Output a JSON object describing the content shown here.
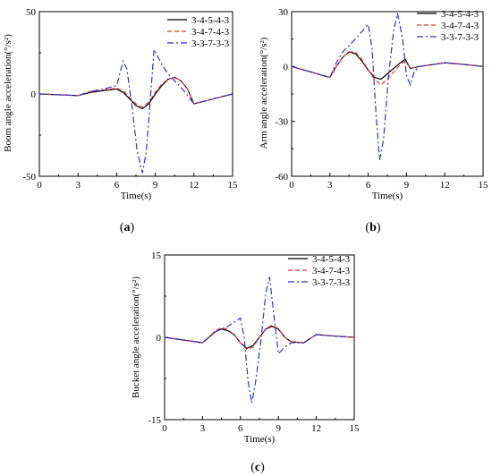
{
  "chart_data": [
    {
      "type": "line",
      "caption_letter": "a",
      "ylabel": "Boom  angle acceleration(°/s²)",
      "xlabel": "Time(s)",
      "xlim": [
        0,
        15
      ],
      "ylim": [
        -50,
        50
      ],
      "xticks": [
        0,
        3,
        6,
        9,
        12,
        15
      ],
      "yticks": [
        -50,
        0,
        50
      ],
      "grid": false,
      "legend_position": "top-right",
      "series": [
        {
          "name": "3-4-5-4-3",
          "color": "#000000",
          "dash": "solid",
          "points": [
            [
              0,
              0
            ],
            [
              3,
              -1
            ],
            [
              4,
              1
            ],
            [
              5,
              2
            ],
            [
              6,
              3
            ],
            [
              6.5,
              1
            ],
            [
              7,
              -3
            ],
            [
              7.5,
              -7
            ],
            [
              8,
              -9
            ],
            [
              8.5,
              -6
            ],
            [
              9,
              0
            ],
            [
              9.5,
              5
            ],
            [
              10,
              9
            ],
            [
              10.5,
              10
            ],
            [
              11,
              8
            ],
            [
              11.5,
              3
            ],
            [
              12,
              -6
            ],
            [
              13,
              -4
            ],
            [
              14,
              -2
            ],
            [
              15,
              0
            ]
          ]
        },
        {
          "name": "3-4-7-4-3",
          "color": "#e53935",
          "dash": "dashed",
          "points": [
            [
              0,
              0
            ],
            [
              3,
              -1
            ],
            [
              4,
              1.5
            ],
            [
              5,
              2.5
            ],
            [
              6,
              3.5
            ],
            [
              6.5,
              2
            ],
            [
              7,
              -2
            ],
            [
              7.5,
              -6
            ],
            [
              8,
              -8
            ],
            [
              8.5,
              -5
            ],
            [
              9,
              1
            ],
            [
              9.5,
              6
            ],
            [
              10,
              9
            ],
            [
              10.5,
              10
            ],
            [
              11,
              8
            ],
            [
              11.5,
              3
            ],
            [
              12,
              -6
            ],
            [
              13,
              -4
            ],
            [
              14,
              -2
            ],
            [
              15,
              0
            ]
          ]
        },
        {
          "name": "3-3-7-3-3",
          "color": "#2a35d6",
          "dash": "dashdot",
          "points": [
            [
              0,
              0
            ],
            [
              3,
              -1
            ],
            [
              4,
              1.5
            ],
            [
              5,
              3
            ],
            [
              6,
              5
            ],
            [
              6.5,
              20
            ],
            [
              6.8,
              15
            ],
            [
              7.2,
              -8
            ],
            [
              7.6,
              -35
            ],
            [
              8,
              -48
            ],
            [
              8.3,
              -35
            ],
            [
              8.6,
              -5
            ],
            [
              8.9,
              27
            ],
            [
              9.5,
              18
            ],
            [
              10,
              12
            ],
            [
              10.5,
              8
            ],
            [
              11,
              4
            ],
            [
              12,
              -6
            ],
            [
              13,
              -4
            ],
            [
              14,
              -2
            ],
            [
              15,
              0
            ]
          ]
        }
      ]
    },
    {
      "type": "line",
      "caption_letter": "b",
      "ylabel": "Arm  angle acceleration(°/s²)",
      "xlabel": "Time(s)",
      "xlim": [
        0,
        15
      ],
      "ylim": [
        -60,
        30
      ],
      "xticks": [
        0,
        3,
        6,
        9,
        12,
        15
      ],
      "yticks": [
        -60,
        -30,
        0,
        30
      ],
      "grid": false,
      "legend_position": "top-right",
      "series": [
        {
          "name": "3-4-5-4-3",
          "color": "#000000",
          "dash": "solid",
          "points": [
            [
              0,
              0
            ],
            [
              3,
              -6
            ],
            [
              3.5,
              0
            ],
            [
              4,
              5
            ],
            [
              4.5,
              8
            ],
            [
              5,
              7
            ],
            [
              5.5,
              3
            ],
            [
              6,
              -2
            ],
            [
              6.5,
              -6
            ],
            [
              7,
              -7
            ],
            [
              7.5,
              -4
            ],
            [
              8,
              -1
            ],
            [
              8.5,
              2
            ],
            [
              8.9,
              4
            ],
            [
              9.3,
              -1
            ],
            [
              10,
              0
            ],
            [
              12,
              2
            ],
            [
              13,
              1.5
            ],
            [
              14,
              0.8
            ],
            [
              15,
              0
            ]
          ]
        },
        {
          "name": "3-4-7-4-3",
          "color": "#e53935",
          "dash": "dashed",
          "points": [
            [
              0,
              0
            ],
            [
              3,
              -6
            ],
            [
              3.5,
              0
            ],
            [
              4,
              5
            ],
            [
              4.5,
              8
            ],
            [
              5,
              8
            ],
            [
              5.5,
              4
            ],
            [
              6,
              -2
            ],
            [
              6.5,
              -7
            ],
            [
              7,
              -10
            ],
            [
              7.5,
              -7
            ],
            [
              8,
              -3
            ],
            [
              8.5,
              1
            ],
            [
              8.9,
              3
            ],
            [
              9.3,
              -1
            ],
            [
              10,
              0
            ],
            [
              12,
              2
            ],
            [
              13,
              1.5
            ],
            [
              14,
              0.8
            ],
            [
              15,
              0
            ]
          ]
        },
        {
          "name": "3-3-7-3-3",
          "color": "#2a35d6",
          "dash": "dashdot",
          "points": [
            [
              0,
              0
            ],
            [
              3,
              -6
            ],
            [
              3.5,
              2
            ],
            [
              4,
              8
            ],
            [
              5,
              15
            ],
            [
              6,
              23
            ],
            [
              6.3,
              10
            ],
            [
              6.6,
              -25
            ],
            [
              6.9,
              -51
            ],
            [
              7.2,
              -40
            ],
            [
              7.6,
              -5
            ],
            [
              8,
              20
            ],
            [
              8.3,
              29
            ],
            [
              8.7,
              15
            ],
            [
              9,
              -5
            ],
            [
              9.3,
              -10
            ],
            [
              9.6,
              -3
            ],
            [
              10,
              0
            ],
            [
              12,
              2
            ],
            [
              13,
              1.5
            ],
            [
              14,
              0.8
            ],
            [
              15,
              0
            ]
          ]
        }
      ]
    },
    {
      "type": "line",
      "caption_letter": "c",
      "ylabel": "Bucket  angle acceleration(°/s²)",
      "xlabel": "Time(s)",
      "xlim": [
        0,
        15
      ],
      "ylim": [
        -15,
        15
      ],
      "xticks": [
        0,
        3,
        6,
        9,
        12,
        15
      ],
      "yticks": [
        -15,
        0,
        15
      ],
      "grid": false,
      "legend_position": "top-right",
      "series": [
        {
          "name": "3-4-5-4-3",
          "color": "#000000",
          "dash": "solid",
          "points": [
            [
              0,
              0
            ],
            [
              3,
              -1
            ],
            [
              3.5,
              0
            ],
            [
              4,
              1
            ],
            [
              4.5,
              1.5
            ],
            [
              5,
              1.2
            ],
            [
              5.5,
              0.5
            ],
            [
              6,
              -1
            ],
            [
              6.5,
              -2
            ],
            [
              7,
              -1.5
            ],
            [
              7.5,
              0
            ],
            [
              8,
              1.5
            ],
            [
              8.5,
              2
            ],
            [
              9,
              1.5
            ],
            [
              9.5,
              0
            ],
            [
              10,
              -0.8
            ],
            [
              11,
              -1
            ],
            [
              12,
              0.5
            ],
            [
              13,
              0.3
            ],
            [
              15,
              0
            ]
          ]
        },
        {
          "name": "3-4-7-4-3",
          "color": "#e53935",
          "dash": "dashed",
          "points": [
            [
              0,
              0
            ],
            [
              3,
              -1
            ],
            [
              3.5,
              0
            ],
            [
              4,
              1.2
            ],
            [
              4.5,
              1.8
            ],
            [
              5,
              1.4
            ],
            [
              5.5,
              0.5
            ],
            [
              6,
              -1
            ],
            [
              6.5,
              -2.2
            ],
            [
              7,
              -1.8
            ],
            [
              7.5,
              0
            ],
            [
              8,
              1.6
            ],
            [
              8.5,
              2.2
            ],
            [
              9,
              1.6
            ],
            [
              9.5,
              0
            ],
            [
              10,
              -0.8
            ],
            [
              11,
              -1
            ],
            [
              12,
              0.5
            ],
            [
              13,
              0.3
            ],
            [
              15,
              0
            ]
          ]
        },
        {
          "name": "3-3-7-3-3",
          "color": "#2a35d6",
          "dash": "dashdot",
          "points": [
            [
              0,
              0
            ],
            [
              3,
              -1
            ],
            [
              3.5,
              0
            ],
            [
              4,
              1
            ],
            [
              5,
              2
            ],
            [
              6,
              3.5
            ],
            [
              6.3,
              0
            ],
            [
              6.6,
              -8
            ],
            [
              6.9,
              -12
            ],
            [
              7.2,
              -8
            ],
            [
              7.6,
              -1
            ],
            [
              8,
              8
            ],
            [
              8.3,
              11
            ],
            [
              8.6,
              5
            ],
            [
              9,
              -3
            ],
            [
              9.4,
              -2
            ],
            [
              10,
              -1
            ],
            [
              11,
              -1
            ],
            [
              12,
              0.5
            ],
            [
              13,
              0.3
            ],
            [
              15,
              0
            ]
          ]
        }
      ]
    }
  ]
}
